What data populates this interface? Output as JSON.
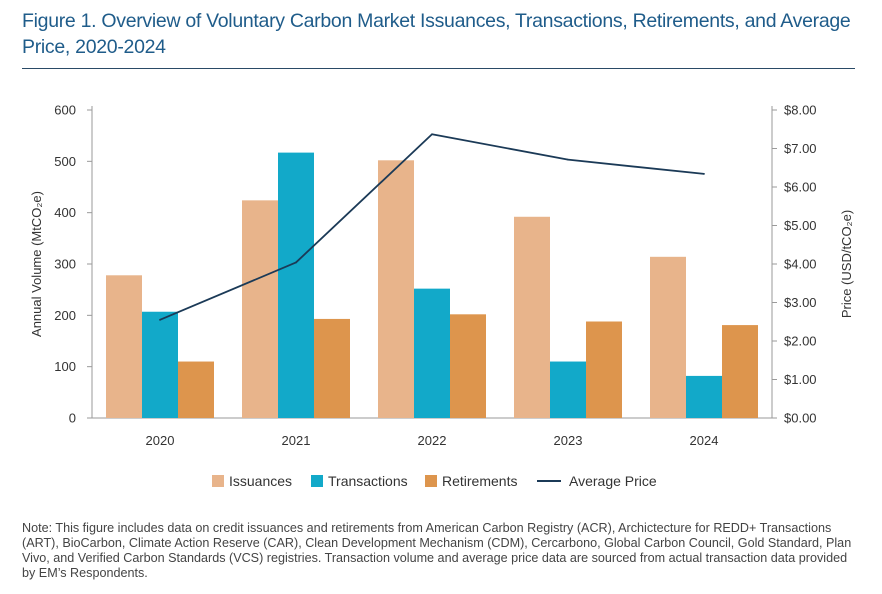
{
  "title": "Figure 1. Overview of Voluntary Carbon Market Issuances, Transactions, Retirements, and Average Price, 2020-2024",
  "note": "Note: This figure includes data on credit issuances and retirements from American Carbon Registry (ACR), Archictecture for REDD+ Transactions (ART), BioCarbon, Climate Action Reserve (CAR), Clean Development Mechanism (CDM), Cercarbono, Global Carbon Council, Gold Standard, Plan Vivo, and Verified Carbon Standards (VCS) registries. Transaction volume and average price data are sourced from actual transaction data provided by EM’s Respondents.",
  "chart_data": {
    "type": "bar",
    "categories": [
      "2020",
      "2021",
      "2022",
      "2023",
      "2024"
    ],
    "series": [
      {
        "name": "Issuances",
        "values": [
          278,
          424,
          502,
          392,
          314
        ],
        "color": "#e8b48b"
      },
      {
        "name": "Transactions",
        "values": [
          207,
          517,
          252,
          110,
          82
        ],
        "color": "#12a9c9"
      },
      {
        "name": "Retirements",
        "values": [
          110,
          193,
          202,
          188,
          181
        ],
        "color": "#dd954d"
      }
    ],
    "line_series": {
      "name": "Average Price",
      "values": [
        2.55,
        4.04,
        7.37,
        6.71,
        6.34
      ],
      "color": "#1b3a57",
      "axis": "right"
    },
    "ylabel": "Annual Volume (MtCO₂e)",
    "y2label": "Price (USD/tCO₂e)",
    "ylim": [
      0,
      600
    ],
    "y2lim": [
      0,
      8
    ],
    "yticks": [
      "0",
      "100",
      "200",
      "300",
      "400",
      "500",
      "600"
    ],
    "y2ticks": [
      "$0.00",
      "$1.00",
      "$2.00",
      "$3.00",
      "$4.00",
      "$5.00",
      "$6.00",
      "$7.00",
      "$8.00"
    ],
    "grid": false,
    "legend": "bottom-center"
  }
}
